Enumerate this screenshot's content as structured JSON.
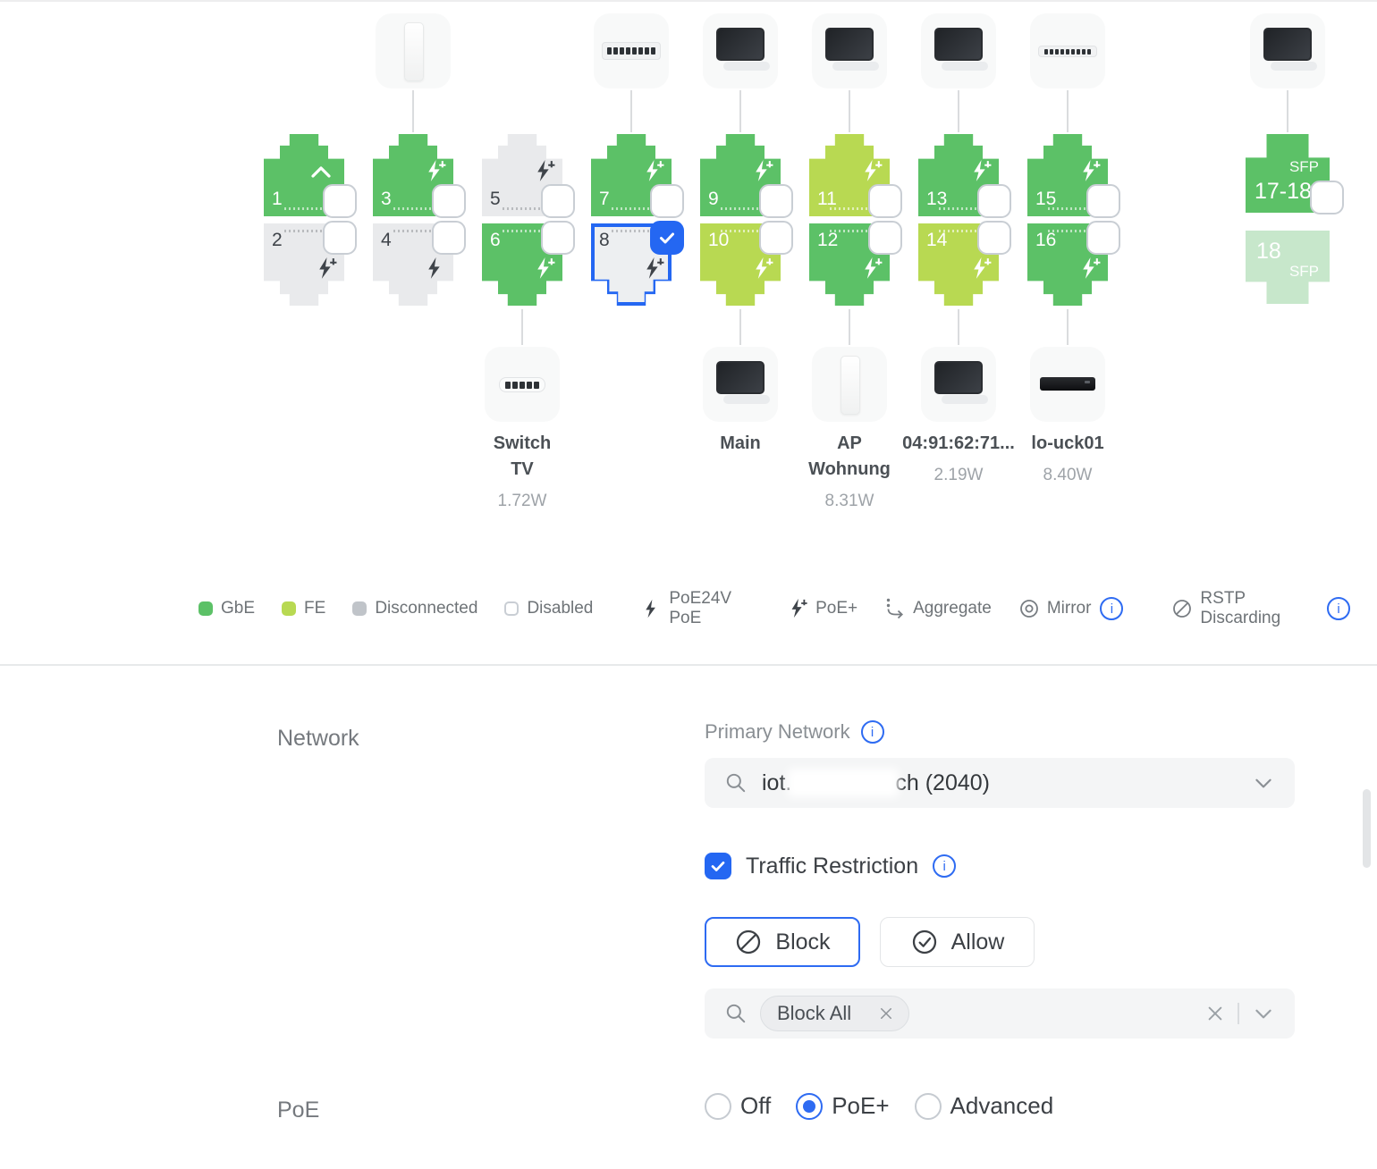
{
  "colors": {
    "gbe": "#5CC167",
    "fe": "#B8D952",
    "disconnected": "#E9EAEC",
    "disabled_border": "#C9CED4",
    "selected_blue": "#2467F2",
    "selected_bg": "#EDEFF1",
    "sfp_faded": "#C7E7CB",
    "accent_blue": "#2E6BF2"
  },
  "port_grid": {
    "columns": [
      {
        "top": {
          "label": "1",
          "state": "gbe",
          "icon": "chevron",
          "checkbox": "unchecked"
        },
        "bottom": {
          "label": "2",
          "state": "off",
          "icon": "poe+",
          "checkbox": "unchecked"
        }
      },
      {
        "top": {
          "label": "3",
          "state": "gbe",
          "icon": "poe+",
          "checkbox": "unchecked"
        },
        "bottom": {
          "label": "4",
          "state": "off",
          "icon": "poe",
          "checkbox": "unchecked"
        },
        "top_device": {
          "type": "ap"
        }
      },
      {
        "top": {
          "label": "5",
          "state": "off",
          "icon": "poe+",
          "checkbox": "unchecked"
        },
        "bottom": {
          "label": "6",
          "state": "gbe",
          "icon": "poe+",
          "checkbox": "unchecked"
        },
        "bottom_device": {
          "type": "switch-5",
          "name_lines": [
            "Switch",
            "TV"
          ],
          "watts": "1.72W"
        }
      },
      {
        "top": {
          "label": "7",
          "state": "gbe",
          "icon": "poe+",
          "checkbox": "unchecked"
        },
        "bottom": {
          "label": "8",
          "state": "selected",
          "icon": "poe+",
          "checkbox": "checked"
        },
        "top_device": {
          "type": "switch-8"
        }
      },
      {
        "top": {
          "label": "9",
          "state": "gbe",
          "icon": "poe+",
          "checkbox": "unchecked"
        },
        "bottom": {
          "label": "10",
          "state": "fe",
          "icon": "poe+",
          "checkbox": "unchecked"
        },
        "top_device": {
          "type": "monitor"
        },
        "bottom_device": {
          "type": "monitor",
          "name_lines": [
            "Main"
          ],
          "watts": ""
        }
      },
      {
        "top": {
          "label": "11",
          "state": "fe",
          "icon": "poe+",
          "checkbox": "unchecked"
        },
        "bottom": {
          "label": "12",
          "state": "gbe",
          "icon": "poe+",
          "checkbox": "unchecked"
        },
        "top_device": {
          "type": "monitor"
        },
        "bottom_device": {
          "type": "ap",
          "name_lines": [
            "AP",
            "Wohnung"
          ],
          "watts": "8.31W"
        }
      },
      {
        "top": {
          "label": "13",
          "state": "gbe",
          "icon": "poe+",
          "checkbox": "unchecked"
        },
        "bottom": {
          "label": "14",
          "state": "fe",
          "icon": "poe+",
          "checkbox": "unchecked"
        },
        "top_device": {
          "type": "monitor"
        },
        "bottom_device": {
          "type": "monitor",
          "name_lines": [
            "04:91:62:71..."
          ],
          "watts": "2.19W"
        }
      },
      {
        "top": {
          "label": "15",
          "state": "gbe",
          "icon": "poe+",
          "checkbox": "unchecked"
        },
        "bottom": {
          "label": "16",
          "state": "gbe",
          "icon": "poe+",
          "checkbox": "unchecked"
        },
        "top_device": {
          "type": "switch-strip"
        },
        "bottom_device": {
          "type": "black-box",
          "name_lines": [
            "lo-uck01"
          ],
          "watts": "8.40W"
        }
      },
      {
        "top": {
          "label": "17-18",
          "state": "sfp",
          "sfp": true,
          "sfp_tag": "SFP",
          "checkbox": "unchecked"
        },
        "bottom": {
          "label": "18",
          "state": "sfp-faded",
          "sfp": true,
          "sfp_tag": "SFP"
        },
        "top_device": {
          "type": "monitor"
        }
      }
    ]
  },
  "legend": {
    "items": [
      {
        "swatch": "gbe",
        "label": "GbE"
      },
      {
        "swatch": "fe",
        "label": "FE"
      },
      {
        "swatch": "disconnected",
        "label": "Disconnected"
      },
      {
        "swatch": "disabled",
        "label": "Disabled"
      },
      {
        "icon": "bolt",
        "label": "PoE24V PoE"
      },
      {
        "icon": "bolt-plus",
        "label": "PoE+"
      },
      {
        "icon": "aggregate",
        "label": "Aggregate"
      },
      {
        "icon": "mirror",
        "label": "Mirror",
        "info": true
      },
      {
        "icon": "rstp",
        "label": "RSTP Discarding",
        "info": true
      }
    ]
  },
  "settings": {
    "network_section_label": "Network",
    "primary_network_label": "Primary Network",
    "primary_network_value_prefix": "iot.",
    "primary_network_value_suffix": "ch (2040)",
    "traffic_restriction_label": "Traffic Restriction",
    "traffic_restriction_checked": true,
    "block_button_label": "Block",
    "allow_button_label": "Allow",
    "selected_mode": "Block",
    "tag_label": "Block All",
    "poe_section_label": "PoE",
    "poe_options": [
      {
        "label": "Off",
        "selected": false
      },
      {
        "label": "PoE+",
        "selected": true
      },
      {
        "label": "Advanced",
        "selected": false
      }
    ]
  }
}
